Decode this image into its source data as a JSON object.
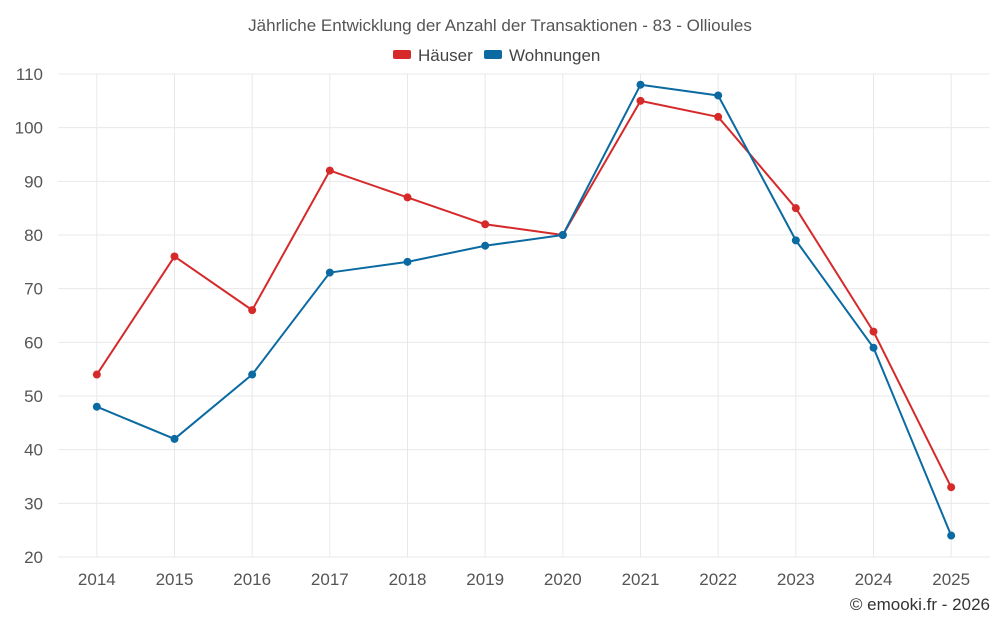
{
  "chart_data": {
    "type": "line",
    "title": "Jährliche Entwicklung der Anzahl der Transaktionen - 83 - Ollioules",
    "categories": [
      "2014",
      "2015",
      "2016",
      "2017",
      "2018",
      "2019",
      "2020",
      "2021",
      "2022",
      "2023",
      "2024",
      "2025"
    ],
    "ylim": [
      20,
      110
    ],
    "yticks": [
      20,
      30,
      40,
      50,
      60,
      70,
      80,
      90,
      100,
      110
    ],
    "grid": true,
    "legend_position": "top-center",
    "series": [
      {
        "name": "Häuser",
        "color": "#d62a2a",
        "values": [
          54,
          76,
          66,
          92,
          87,
          82,
          80,
          105,
          102,
          85,
          62,
          33
        ]
      },
      {
        "name": "Wohnungen",
        "color": "#0a6aa1",
        "values": [
          48,
          42,
          54,
          73,
          75,
          78,
          80,
          108,
          106,
          79,
          59,
          24
        ]
      }
    ],
    "credit": "© emooki.fr - 2026"
  }
}
